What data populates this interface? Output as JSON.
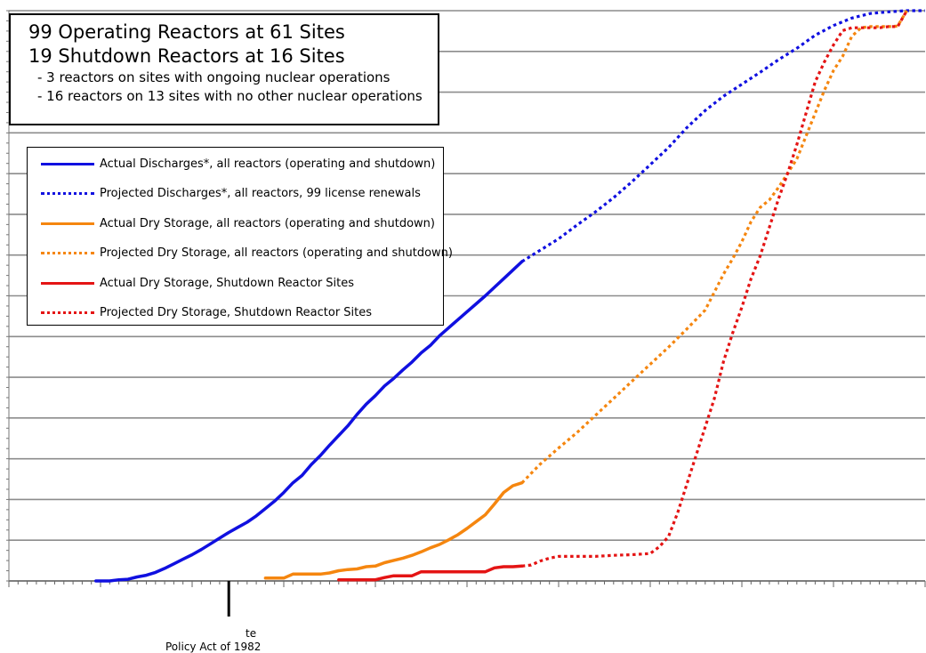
{
  "info_box": {
    "line1": "99 Operating Reactors at 61 Sites",
    "line2": "19 Shutdown Reactors at 16 Sites",
    "line3": "- 3 reactors on sites with ongoing nuclear operations",
    "line4": "- 16 reactors on 13 sites with no other nuclear operations"
  },
  "annotation": {
    "line1": "te",
    "line2": "Policy Act of  1982"
  },
  "chart_data": {
    "type": "line",
    "title": "",
    "xlabel": "",
    "ylabel": "",
    "xlim": [
      0,
      100
    ],
    "ylim": [
      0,
      100
    ],
    "tick_labels_visible": false,
    "grid": true,
    "legend_position": "top-left",
    "marker_x": 24,
    "series": [
      {
        "name": "Actual Discharges*, all reactors (operating and shutdown)",
        "color": "#1010e0",
        "style": "solid",
        "points": [
          [
            9.5,
            0
          ],
          [
            11,
            0
          ],
          [
            12,
            0.2
          ],
          [
            13,
            0.3
          ],
          [
            14,
            0.7
          ],
          [
            15,
            1
          ],
          [
            16,
            1.5
          ],
          [
            17,
            2.2
          ],
          [
            18,
            3
          ],
          [
            19,
            3.8
          ],
          [
            20,
            4.6
          ],
          [
            21,
            5.5
          ],
          [
            22,
            6.5
          ],
          [
            23,
            7.5
          ],
          [
            24,
            8.5
          ],
          [
            25,
            9.4
          ],
          [
            26,
            10.3
          ],
          [
            27,
            11.4
          ],
          [
            28,
            12.7
          ],
          [
            29,
            14
          ],
          [
            30,
            15.5
          ],
          [
            31,
            17.2
          ],
          [
            32,
            18.5
          ],
          [
            33,
            20.4
          ],
          [
            34,
            22
          ],
          [
            35,
            23.8
          ],
          [
            36,
            25.5
          ],
          [
            37,
            27.2
          ],
          [
            38,
            29.2
          ],
          [
            39,
            31
          ],
          [
            40,
            32.5
          ],
          [
            41,
            34.2
          ],
          [
            42,
            35.5
          ],
          [
            43,
            37
          ],
          [
            44,
            38.4
          ],
          [
            45,
            40
          ],
          [
            46,
            41.3
          ],
          [
            47,
            43
          ],
          [
            48,
            44.4
          ],
          [
            49,
            45.8
          ],
          [
            50,
            47.2
          ],
          [
            51,
            48.6
          ],
          [
            52,
            50
          ],
          [
            53,
            51.5
          ],
          [
            54,
            53
          ],
          [
            55,
            54.5
          ],
          [
            56,
            56
          ]
        ]
      },
      {
        "name": "Projected Discharges*, all reactors, 99 license renewals",
        "color": "#1010e0",
        "style": "dotted",
        "points": [
          [
            56,
            56
          ],
          [
            58,
            58
          ],
          [
            60,
            60
          ],
          [
            62,
            62.4
          ],
          [
            64,
            64.7
          ],
          [
            66,
            67.2
          ],
          [
            68,
            70
          ],
          [
            70,
            73
          ],
          [
            72,
            76
          ],
          [
            74,
            79.5
          ],
          [
            76,
            82.5
          ],
          [
            78,
            85
          ],
          [
            80,
            87.1
          ],
          [
            82,
            89.2
          ],
          [
            84,
            91.4
          ],
          [
            86,
            93.4
          ],
          [
            88,
            95.7
          ],
          [
            90,
            97.4
          ],
          [
            92,
            98.7
          ],
          [
            94,
            99.5
          ],
          [
            96,
            99.8
          ],
          [
            98,
            100
          ],
          [
            100,
            100
          ]
        ]
      },
      {
        "name": "Actual Dry Storage, all reactors (operating and shutdown)",
        "color": "#f5860f",
        "style": "solid",
        "points": [
          [
            28,
            0.5
          ],
          [
            30,
            0.5
          ],
          [
            31,
            1.2
          ],
          [
            32,
            1.2
          ],
          [
            33,
            1.2
          ],
          [
            34,
            1.2
          ],
          [
            35,
            1.4
          ],
          [
            36,
            1.8
          ],
          [
            37,
            2
          ],
          [
            38,
            2.1
          ],
          [
            39,
            2.5
          ],
          [
            40,
            2.6
          ],
          [
            41,
            3.2
          ],
          [
            42,
            3.6
          ],
          [
            43,
            4
          ],
          [
            44,
            4.5
          ],
          [
            45,
            5.1
          ],
          [
            46,
            5.8
          ],
          [
            47,
            6.4
          ],
          [
            48,
            7.2
          ],
          [
            49,
            8.1
          ],
          [
            50,
            9.2
          ],
          [
            51,
            10.4
          ],
          [
            52,
            11.6
          ],
          [
            53,
            13.5
          ],
          [
            54,
            15.5
          ],
          [
            55,
            16.7
          ],
          [
            56,
            17.2
          ]
        ]
      },
      {
        "name": "Projected Dry Storage, all reactors (operating and shutdown)",
        "color": "#f5860f",
        "style": "dotted",
        "points": [
          [
            56,
            17.2
          ],
          [
            58,
            20.5
          ],
          [
            60,
            23.3
          ],
          [
            62,
            26
          ],
          [
            64,
            29
          ],
          [
            66,
            32
          ],
          [
            68,
            35
          ],
          [
            70,
            38
          ],
          [
            72,
            41
          ],
          [
            74,
            44.2
          ],
          [
            76,
            47.5
          ],
          [
            78,
            53.8
          ],
          [
            79,
            56.5
          ],
          [
            80,
            59.5
          ],
          [
            81,
            63
          ],
          [
            82,
            65.5
          ],
          [
            83,
            66.8
          ],
          [
            84,
            69
          ],
          [
            85,
            71.5
          ],
          [
            86,
            74
          ],
          [
            87,
            78
          ],
          [
            88,
            82
          ],
          [
            89,
            86
          ],
          [
            90,
            89.5
          ],
          [
            91,
            92
          ],
          [
            92,
            95.5
          ],
          [
            93,
            97
          ],
          [
            94,
            97.2
          ],
          [
            95,
            97.2
          ],
          [
            96,
            97.2
          ],
          [
            97,
            97.3
          ],
          [
            98,
            100
          ]
        ]
      },
      {
        "name": "Actual Dry Storage, Shutdown Reactor Sites",
        "color": "#e41414",
        "style": "solid",
        "points": [
          [
            36,
            0.2
          ],
          [
            40,
            0.2
          ],
          [
            41,
            0.6
          ],
          [
            42,
            0.9
          ],
          [
            43,
            0.9
          ],
          [
            44,
            0.9
          ],
          [
            45,
            1.6
          ],
          [
            46,
            1.6
          ],
          [
            47,
            1.6
          ],
          [
            48,
            1.6
          ],
          [
            49,
            1.6
          ],
          [
            50,
            1.6
          ],
          [
            51,
            1.6
          ],
          [
            52,
            1.6
          ],
          [
            53,
            2.3
          ],
          [
            54,
            2.5
          ],
          [
            55,
            2.5
          ],
          [
            56,
            2.6
          ]
        ]
      },
      {
        "name": "Projected Dry Storage, Shutdown Reactor Sites",
        "color": "#e41414",
        "style": "dotted",
        "points": [
          [
            56,
            2.6
          ],
          [
            57,
            2.8
          ],
          [
            58,
            3.5
          ],
          [
            59,
            4
          ],
          [
            60,
            4.3
          ],
          [
            62,
            4.3
          ],
          [
            64,
            4.3
          ],
          [
            66,
            4.5
          ],
          [
            68,
            4.6
          ],
          [
            70,
            4.8
          ],
          [
            71,
            6
          ],
          [
            72,
            7.8
          ],
          [
            73,
            12
          ],
          [
            74,
            17
          ],
          [
            75,
            22
          ],
          [
            76,
            27
          ],
          [
            77,
            32
          ],
          [
            78,
            38.5
          ],
          [
            79,
            43.5
          ],
          [
            80,
            48
          ],
          [
            81,
            53
          ],
          [
            82,
            57
          ],
          [
            83,
            62
          ],
          [
            84,
            67
          ],
          [
            85,
            71.5
          ],
          [
            86,
            76.5
          ],
          [
            87,
            82
          ],
          [
            88,
            87.5
          ],
          [
            89,
            91
          ],
          [
            90,
            94
          ],
          [
            91,
            96.5
          ],
          [
            92,
            97
          ],
          [
            93,
            97
          ],
          [
            94,
            97
          ],
          [
            95,
            97
          ],
          [
            96,
            97.2
          ],
          [
            97,
            97.2
          ],
          [
            98,
            100
          ]
        ]
      }
    ]
  }
}
